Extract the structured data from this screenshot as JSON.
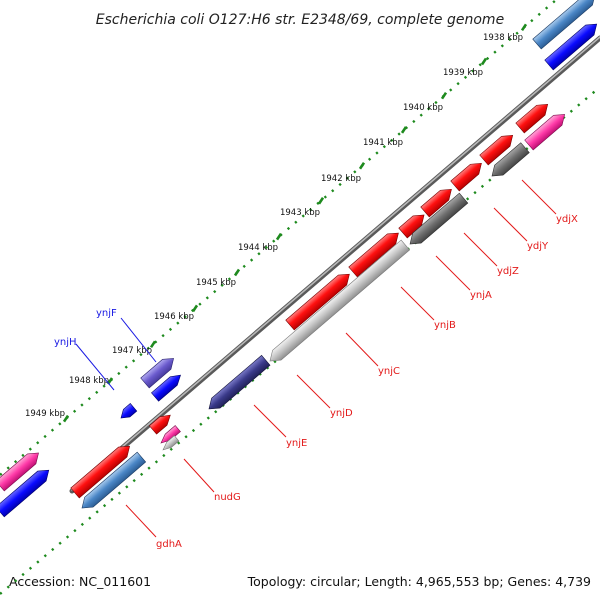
{
  "title": "Escherichia coli O127:H6 str. E2348/69, complete genome",
  "footer": {
    "accession": "Accession: NC_011601",
    "summary": "Topology: circular; Length: 4,965,553 bp; Genes: 4,739"
  },
  "colors": {
    "backbone": "#8a8a8a",
    "tick_dots": "#1e8a1e",
    "label_red": "#e31a1a",
    "label_blue": "#1a1ae3",
    "cds_red": "#ff1a1a",
    "steelblue": "#4a86c6",
    "blue": "#0a0aff",
    "violet": "#6a5acd",
    "darkslate": "#3a3a8a",
    "magenta": "#ff3aa8",
    "lightgray": "#c4c4c4",
    "darkgray": "#6e6e6e"
  },
  "ticks": [
    "1938 kbp",
    "1939 kbp",
    "1940 kbp",
    "1941 kbp",
    "1942 kbp",
    "1943 kbp",
    "1944 kbp",
    "1945 kbp",
    "1946 kbp",
    "1947 kbp",
    "1948 kbp",
    "1949 kbp"
  ],
  "gene_labels": {
    "ydjX": "ydjX",
    "ydjY": "ydjY",
    "ydjZ": "ydjZ",
    "ynjA": "ynjA",
    "ynjB": "ynjB",
    "ynjC": "ynjC",
    "ynjD": "ynjD",
    "ynjE": "ynjE",
    "nudG": "nudG",
    "gdhA": "gdhA",
    "ynjF": "ynjF",
    "ynjH": "ynjH"
  }
}
